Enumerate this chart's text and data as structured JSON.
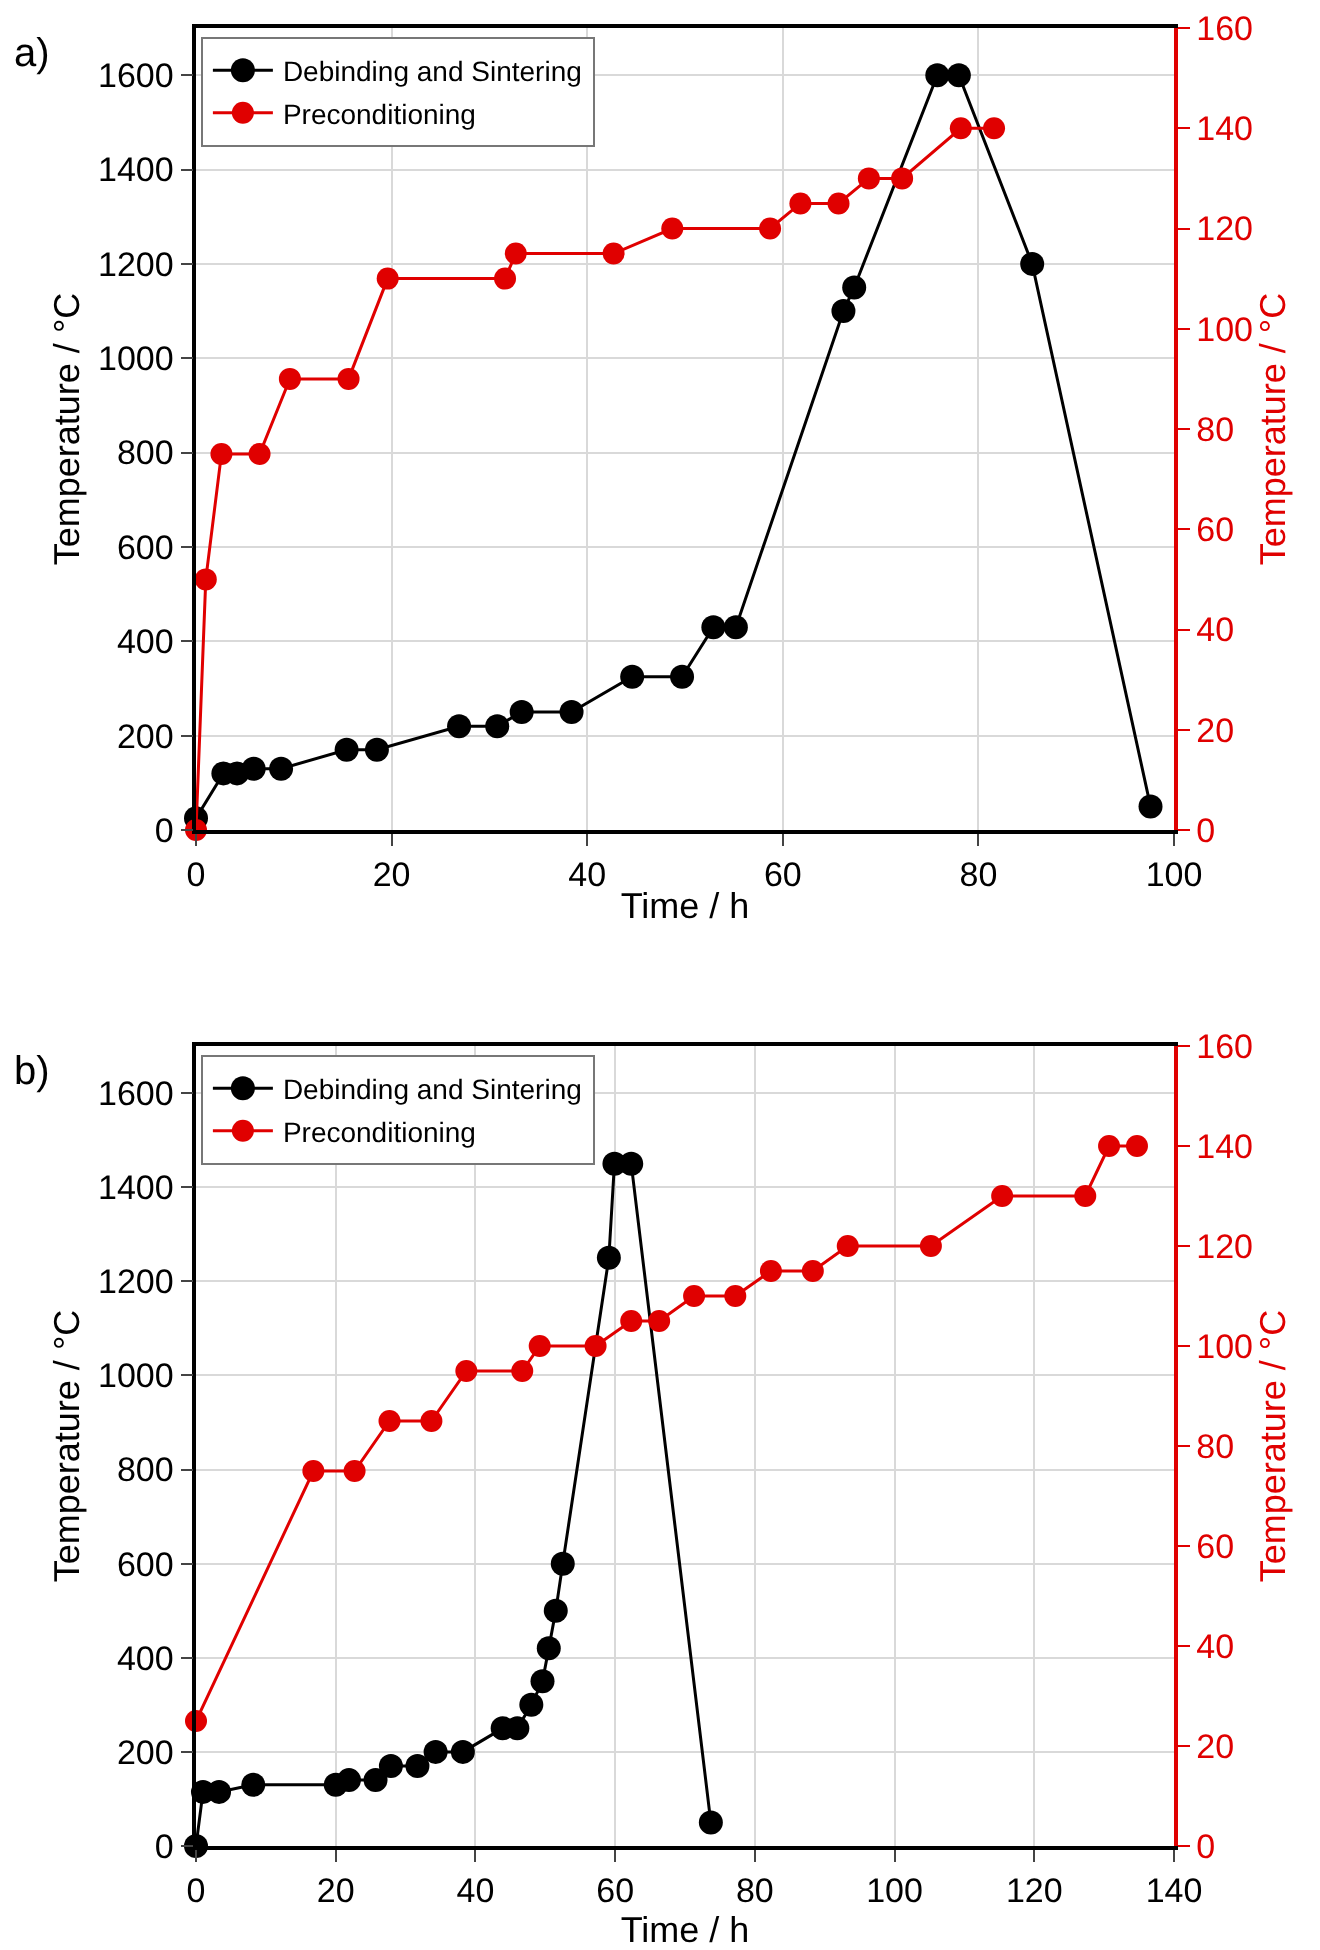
{
  "chart_data": [
    {
      "type": "line",
      "title": "a)",
      "xlabel": "Time / h",
      "ylabel": "Temperature / °C",
      "y2label": "Temperature / °C",
      "xlim": [
        0,
        100
      ],
      "xticks": [
        0,
        20,
        40,
        60,
        80,
        100
      ],
      "ylim": [
        0,
        1700
      ],
      "yticks": [
        0,
        200,
        400,
        600,
        800,
        1000,
        1200,
        1400,
        1600
      ],
      "y2lim": [
        0,
        160
      ],
      "y2ticks": [
        0,
        20,
        40,
        60,
        80,
        100,
        120,
        140,
        160
      ],
      "grid": true,
      "legend": "top left",
      "marker": "circle",
      "line_style": "solid",
      "series": [
        {
          "name": "Debinding and Sintering",
          "color": "#000000",
          "x": [
            0,
            2.8,
            4.2,
            5.9,
            8.7,
            15.4,
            18.5,
            26.9,
            30.8,
            33.3,
            38.4,
            44.6,
            49.7,
            52.9,
            55.2,
            66.2,
            67.3,
            75.8,
            78.0,
            85.5,
            97.6
          ],
          "values": [
            25,
            120,
            120,
            130,
            130,
            170,
            170,
            220,
            220,
            250,
            250,
            325,
            325,
            430,
            430,
            1100,
            1150,
            1600,
            1600,
            1200,
            50
          ]
        },
        {
          "name": "Preconditioning",
          "color": "#e00000",
          "axis": "y2",
          "x": [
            0,
            1.0,
            2.6,
            6.5,
            9.6,
            15.6,
            19.6,
            31.6,
            32.7,
            42.7,
            48.7,
            58.7,
            61.8,
            65.7,
            68.8,
            72.2,
            78.2,
            81.6
          ],
          "values": [
            0,
            50,
            75,
            75,
            90,
            90,
            110,
            110,
            115,
            115,
            120,
            120,
            125,
            125,
            130,
            130,
            140,
            140
          ]
        }
      ]
    },
    {
      "type": "line",
      "title": "b)",
      "xlabel": "Time / h",
      "ylabel": "Temperature / °C",
      "y2label": "Temperature / °C",
      "xlim": [
        0,
        140
      ],
      "xticks": [
        0,
        20,
        40,
        60,
        80,
        100,
        120,
        140
      ],
      "ylim": [
        0,
        1700
      ],
      "yticks": [
        0,
        200,
        400,
        600,
        800,
        1000,
        1200,
        1400,
        1600
      ],
      "y2lim": [
        0,
        160
      ],
      "y2ticks": [
        0,
        20,
        40,
        60,
        80,
        100,
        120,
        140,
        160
      ],
      "grid": true,
      "legend": "top left",
      "marker": "circle",
      "line_style": "solid",
      "series": [
        {
          "name": "Debinding and Sintering",
          "color": "#000000",
          "x": [
            0,
            1.0,
            3.3,
            8.2,
            20.0,
            21.9,
            25.7,
            27.9,
            31.7,
            34.3,
            38.2,
            43.9,
            46.0,
            48.0,
            49.6,
            50.5,
            51.5,
            52.5,
            59.1,
            59.9,
            62.3,
            73.7
          ],
          "values": [
            0,
            115,
            115,
            130,
            130,
            140,
            140,
            170,
            170,
            200,
            200,
            250,
            250,
            300,
            350,
            420,
            500,
            600,
            1250,
            1450,
            1450,
            50
          ]
        },
        {
          "name": "Preconditioning",
          "color": "#e00000",
          "axis": "y2",
          "x": [
            0,
            16.8,
            22.7,
            27.7,
            33.7,
            38.7,
            46.7,
            49.2,
            57.2,
            62.3,
            66.3,
            71.3,
            77.2,
            82.3,
            88.3,
            93.3,
            105.2,
            115.4,
            127.3,
            130.7,
            134.7
          ],
          "values": [
            25,
            75,
            75,
            85,
            85,
            95,
            95,
            100,
            100,
            105,
            105,
            110,
            110,
            115,
            115,
            120,
            120,
            130,
            130,
            140,
            140
          ]
        }
      ]
    }
  ]
}
